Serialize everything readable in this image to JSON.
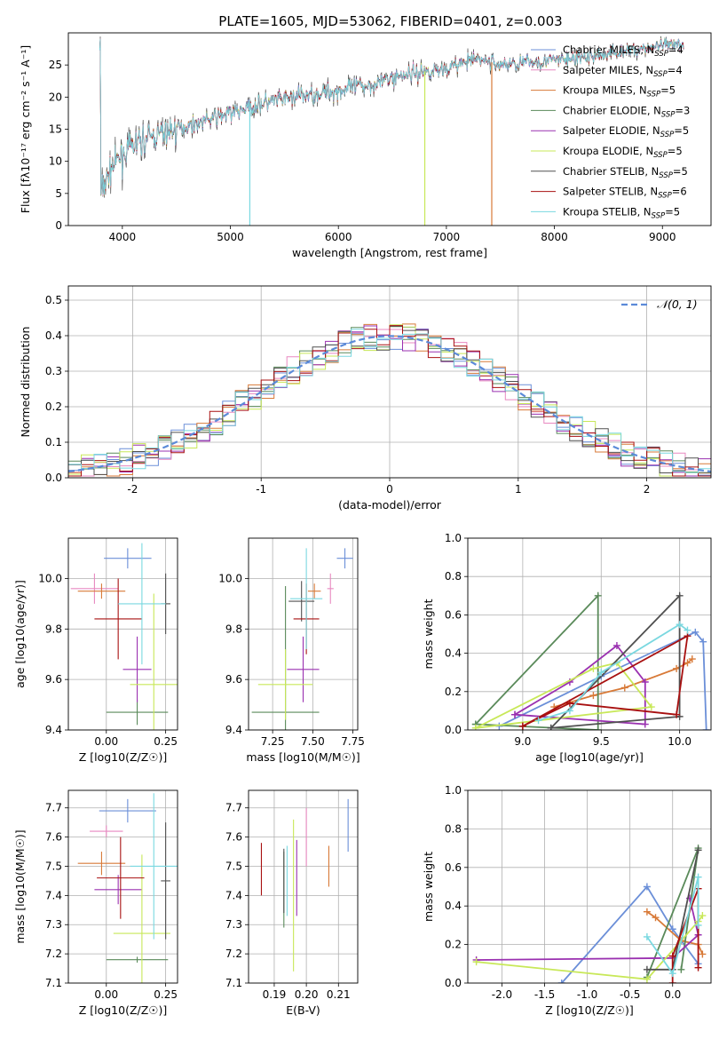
{
  "title": "PLATE=1605, MJD=53062, FIBERID=0401, z=0.003",
  "colors": {
    "chabrier_miles": "#6b8fd8",
    "salpeter_miles": "#e888c0",
    "kroupa_miles": "#d87a38",
    "chabrier_elodie": "#5a8a5a",
    "salpeter_elodie": "#9a30b0",
    "kroupa_elodie": "#c8e858",
    "chabrier_stelib": "#505050",
    "salpeter_stelib": "#a81010",
    "kroupa_stelib": "#7ad8e0"
  },
  "chart_data": [
    {
      "id": "spectrum",
      "type": "line",
      "xlabel": "wavelength [Angstrom, rest frame]",
      "ylabel": "Flux [fλ10⁻¹⁷ erg cm⁻² s⁻¹ A⁻¹]",
      "xlim": [
        3500,
        9450
      ],
      "ylim": [
        0,
        30
      ],
      "xticks": [
        4000,
        5000,
        6000,
        7000,
        8000,
        9000
      ],
      "yticks": [
        0,
        5,
        10,
        15,
        20,
        25
      ],
      "legend": "top-right",
      "legend_entries": [
        {
          "key": "chabrier_miles",
          "label": "Chabrier MILES, N_SSP=4"
        },
        {
          "key": "salpeter_miles",
          "label": "Salpeter MILES, N_SSP=4"
        },
        {
          "key": "kroupa_miles",
          "label": "Kroupa MILES, N_SSP=5"
        },
        {
          "key": "chabrier_elodie",
          "label": "Chabrier ELODIE, N_SSP=3"
        },
        {
          "key": "salpeter_elodie",
          "label": "Salpeter ELODIE, N_SSP=5"
        },
        {
          "key": "kroupa_elodie",
          "label": "Kroupa ELODIE, N_SSP=5"
        },
        {
          "key": "chabrier_stelib",
          "label": "Chabrier STELIB, N_SSP=5"
        },
        {
          "key": "salpeter_stelib",
          "label": "Salpeter STELIB, N_SSP=6"
        },
        {
          "key": "kroupa_stelib",
          "label": "Kroupa STELIB, N_SSP=5"
        }
      ],
      "continuum": [
        [
          3800,
          5
        ],
        [
          3900,
          9
        ],
        [
          4000,
          11
        ],
        [
          4100,
          12.5
        ],
        [
          4300,
          14
        ],
        [
          4500,
          15
        ],
        [
          4700,
          16
        ],
        [
          5000,
          17.5
        ],
        [
          5300,
          19
        ],
        [
          5600,
          20
        ],
        [
          6000,
          21
        ],
        [
          6300,
          22
        ],
        [
          6600,
          23.5
        ],
        [
          7000,
          24.5
        ],
        [
          7300,
          26
        ],
        [
          7500,
          25
        ],
        [
          7800,
          25.5
        ],
        [
          8200,
          26
        ],
        [
          8600,
          27
        ],
        [
          9000,
          28
        ],
        [
          9200,
          28
        ]
      ],
      "dropouts": [
        {
          "key": "kroupa_elodie",
          "x": 6800,
          "y": 0
        },
        {
          "key": "kroupa_miles",
          "x": 7420,
          "y": 0
        },
        {
          "key": "kroupa_stelib",
          "x": 5180,
          "y": 0
        }
      ]
    },
    {
      "id": "residuals",
      "type": "bar",
      "xlabel": "(data-model)/error",
      "ylabel": "Normed distribution",
      "xlim": [
        -2.5,
        2.5
      ],
      "ylim": [
        0,
        0.54
      ],
      "xticks": [
        -2,
        -1,
        0,
        1,
        2
      ],
      "yticks": [
        0.0,
        0.1,
        0.2,
        0.3,
        0.4,
        0.5
      ],
      "legend": "top-right",
      "gaussian_label": "𝒩(0, 1)",
      "bin_width": 0.1
    },
    {
      "id": "age_vs_Z",
      "type": "scatter",
      "xlabel": "Z [log10(Z/Z☉)]",
      "ylabel": "age  [log10(age/yr)]",
      "xlim": [
        -0.16,
        0.3
      ],
      "ylim": [
        9.4,
        10.16
      ],
      "xticks": [
        0.0,
        0.25
      ],
      "yticks": [
        9.4,
        9.6,
        9.8,
        10.0
      ],
      "points": [
        {
          "key": "chabrier_miles",
          "x": 0.09,
          "xerr": 0.1,
          "y": 10.08,
          "yerr": 0.04
        },
        {
          "key": "salpeter_miles",
          "x": -0.05,
          "xerr": 0.1,
          "y": 9.96,
          "yerr": 0.06
        },
        {
          "key": "kroupa_miles",
          "x": -0.02,
          "xerr": 0.1,
          "y": 9.95,
          "yerr": 0.03
        },
        {
          "key": "chabrier_elodie",
          "x": 0.13,
          "xerr": 0.13,
          "y": 9.47,
          "yerr": 0.05
        },
        {
          "key": "salpeter_elodie",
          "x": 0.13,
          "xerr": 0.06,
          "y": 9.64,
          "yerr": 0.13
        },
        {
          "key": "kroupa_elodie",
          "x": 0.2,
          "xerr": 0.1,
          "y": 9.58,
          "yerr": 0.36
        },
        {
          "key": "chabrier_stelib",
          "x": 0.25,
          "xerr": 0.02,
          "y": 9.9,
          "yerr": 0.12
        },
        {
          "key": "salpeter_stelib",
          "x": 0.05,
          "xerr": 0.1,
          "y": 9.84,
          "yerr": 0.16
        },
        {
          "key": "kroupa_stelib",
          "x": 0.15,
          "xerr": 0.1,
          "y": 9.9,
          "yerr": 0.24
        }
      ]
    },
    {
      "id": "age_vs_mass",
      "type": "scatter",
      "xlabel": "mass [log10(M/M☉)]",
      "xlim": [
        7.1,
        7.78
      ],
      "ylim": [
        9.4,
        10.16
      ],
      "xticks": [
        7.25,
        7.5,
        7.75
      ],
      "yticks": [
        9.4,
        9.6,
        9.8,
        10.0
      ],
      "points": [
        {
          "key": "chabrier_miles",
          "x": 7.7,
          "xerr": 0.05,
          "y": 10.08,
          "yerr": 0.04
        },
        {
          "key": "salpeter_miles",
          "x": 7.61,
          "xerr": 0.02,
          "y": 9.96,
          "yerr": 0.06
        },
        {
          "key": "kroupa_miles",
          "x": 7.51,
          "xerr": 0.04,
          "y": 9.95,
          "yerr": 0.03
        },
        {
          "key": "chabrier_elodie",
          "x": 7.33,
          "xerr": 0.21,
          "y": 9.47,
          "yerr": 0.5
        },
        {
          "key": "salpeter_elodie",
          "x": 7.44,
          "xerr": 0.1,
          "y": 9.64,
          "yerr": 0.13
        },
        {
          "key": "kroupa_elodie",
          "x": 7.33,
          "xerr": 0.17,
          "y": 9.58,
          "yerr": 0.14
        },
        {
          "key": "chabrier_stelib",
          "x": 7.43,
          "xerr": 0.08,
          "y": 9.91,
          "yerr": 0.08
        },
        {
          "key": "salpeter_stelib",
          "x": 7.46,
          "xerr": 0.08,
          "y": 9.84,
          "yerr": 0.14
        },
        {
          "key": "kroupa_stelib",
          "x": 7.46,
          "xerr": 0.1,
          "y": 9.92,
          "yerr": 0.2
        }
      ]
    },
    {
      "id": "weight_vs_age",
      "type": "line",
      "xlabel": "age  [log10(age/yr)]",
      "ylabel": "mass weight",
      "xlim": [
        8.65,
        10.2
      ],
      "ylim": [
        0,
        1.0
      ],
      "xticks": [
        9.0,
        9.5,
        10.0
      ],
      "yticks": [
        0.0,
        0.2,
        0.4,
        0.6,
        0.8,
        1.0
      ],
      "series": [
        {
          "key": "chabrier_miles",
          "x": [
            8.85,
            9.5,
            10.1,
            10.15,
            10.17
          ],
          "y": [
            0.02,
            0.28,
            0.51,
            0.46,
            0.0
          ]
        },
        {
          "key": "kroupa_miles",
          "x": [
            9.2,
            9.45,
            9.65,
            9.98,
            10.05,
            10.08
          ],
          "y": [
            0.12,
            0.18,
            0.22,
            0.32,
            0.35,
            0.37
          ]
        },
        {
          "key": "chabrier_elodie",
          "x": [
            8.7,
            9.48,
            9.48,
            8.7
          ],
          "y": [
            0.03,
            0.7,
            0.0,
            0.03
          ]
        },
        {
          "key": "salpeter_elodie",
          "x": [
            8.95,
            9.3,
            9.6,
            9.78,
            9.78,
            8.95
          ],
          "y": [
            0.08,
            0.25,
            0.44,
            0.25,
            0.03,
            0.08
          ]
        },
        {
          "key": "kroupa_elodie",
          "x": [
            8.7,
            9.45,
            9.6,
            9.82,
            8.7
          ],
          "y": [
            0.01,
            0.32,
            0.35,
            0.12,
            0.01
          ]
        },
        {
          "key": "chabrier_stelib",
          "x": [
            9.18,
            10.0,
            10.0,
            9.18
          ],
          "y": [
            0.01,
            0.7,
            0.07,
            0.01
          ]
        },
        {
          "key": "salpeter_stelib",
          "x": [
            9.0,
            9.3,
            9.98,
            10.05,
            9.0
          ],
          "y": [
            0.02,
            0.14,
            0.08,
            0.49,
            0.02
          ]
        },
        {
          "key": "kroupa_stelib",
          "x": [
            9.1,
            9.3,
            9.5,
            10.0,
            10.05
          ],
          "y": [
            0.05,
            0.1,
            0.3,
            0.55,
            0.52
          ]
        }
      ]
    },
    {
      "id": "mass_vs_Z",
      "type": "scatter",
      "xlabel": "Z [log10(Z/Z☉)]",
      "ylabel": "mass [log10(M/M☉)]",
      "xlim": [
        -0.16,
        0.3
      ],
      "ylim": [
        7.1,
        7.76
      ],
      "xticks": [
        0.0,
        0.25
      ],
      "yticks": [
        7.1,
        7.2,
        7.3,
        7.4,
        7.5,
        7.6,
        7.7
      ],
      "points": [
        {
          "key": "chabrier_miles",
          "x": 0.09,
          "xerr": 0.12,
          "y": 7.69,
          "yerr": 0.04
        },
        {
          "key": "salpeter_miles",
          "x": 0.0,
          "xerr": 0.07,
          "y": 7.62,
          "yerr": 0.02
        },
        {
          "key": "kroupa_miles",
          "x": -0.02,
          "xerr": 0.1,
          "y": 7.51,
          "yerr": 0.04
        },
        {
          "key": "chabrier_elodie",
          "x": 0.13,
          "xerr": 0.13,
          "y": 7.18,
          "yerr": 0.01
        },
        {
          "key": "salpeter_elodie",
          "x": 0.05,
          "xerr": 0.1,
          "y": 7.42,
          "yerr": 0.05
        },
        {
          "key": "kroupa_elodie",
          "x": 0.15,
          "xerr": 0.12,
          "y": 7.27,
          "yerr": 0.27
        },
        {
          "key": "chabrier_stelib",
          "x": 0.25,
          "xerr": 0.02,
          "y": 7.45,
          "yerr": 0.2
        },
        {
          "key": "salpeter_stelib",
          "x": 0.06,
          "xerr": 0.1,
          "y": 7.46,
          "yerr": 0.14
        },
        {
          "key": "kroupa_stelib",
          "x": 0.2,
          "xerr": 0.1,
          "y": 7.5,
          "yerr": 0.25
        }
      ]
    },
    {
      "id": "mass_vs_ebv",
      "type": "scatter",
      "xlabel": "E(B-V)",
      "xlim": [
        0.182,
        0.216
      ],
      "ylim": [
        7.1,
        7.76
      ],
      "xticks": [
        0.19,
        0.2,
        0.21
      ],
      "yticks": [
        7.1,
        7.2,
        7.3,
        7.4,
        7.5,
        7.6,
        7.7
      ],
      "points": [
        {
          "key": "chabrier_miles",
          "x": 0.213,
          "y": 7.64,
          "yerr": 0.09
        },
        {
          "key": "salpeter_miles",
          "x": 0.2,
          "y": 7.6,
          "yerr": 0.1
        },
        {
          "key": "kroupa_miles",
          "x": 0.207,
          "y": 7.5,
          "yerr": 0.07
        },
        {
          "key": "chabrier_elodie",
          "x": 0.193,
          "y": 7.42,
          "yerr": 0.13
        },
        {
          "key": "salpeter_elodie",
          "x": 0.197,
          "y": 7.46,
          "yerr": 0.13
        },
        {
          "key": "kroupa_elodie",
          "x": 0.196,
          "y": 7.4,
          "yerr": 0.26
        },
        {
          "key": "chabrier_stelib",
          "x": 0.193,
          "y": 7.45,
          "yerr": 0.11
        },
        {
          "key": "salpeter_stelib",
          "x": 0.186,
          "y": 7.49,
          "yerr": 0.09
        },
        {
          "key": "kroupa_stelib",
          "x": 0.194,
          "y": 7.45,
          "yerr": 0.12
        }
      ]
    },
    {
      "id": "weight_vs_Z",
      "type": "line",
      "xlabel": "Z [log10(Z/Z☉)]",
      "ylabel": "mass weight",
      "xlim": [
        -2.4,
        0.45
      ],
      "ylim": [
        0,
        1.0
      ],
      "xticks": [
        -2.0,
        -1.5,
        -1.0,
        -0.5,
        0.0
      ],
      "yticks": [
        0.0,
        0.2,
        0.4,
        0.6,
        0.8,
        1.0
      ],
      "series": [
        {
          "key": "chabrier_miles",
          "x": [
            -1.3,
            -0.3,
            0.0,
            0.3
          ],
          "y": [
            0.0,
            0.5,
            0.28,
            0.1
          ]
        },
        {
          "key": "kroupa_miles",
          "x": [
            -0.3,
            -0.2,
            0.1,
            0.3,
            0.35
          ],
          "y": [
            0.37,
            0.34,
            0.22,
            0.2,
            0.15
          ]
        },
        {
          "key": "chabrier_elodie",
          "x": [
            -0.3,
            0.3,
            0.1
          ],
          "y": [
            0.03,
            0.7,
            0.07
          ]
        },
        {
          "key": "salpeter_elodie",
          "x": [
            -2.3,
            0.0,
            0.3,
            0.2
          ],
          "y": [
            0.12,
            0.13,
            0.25,
            0.44
          ]
        },
        {
          "key": "kroupa_elodie",
          "x": [
            -2.3,
            -0.3,
            0.3,
            0.35
          ],
          "y": [
            0.11,
            0.02,
            0.32,
            0.35
          ]
        },
        {
          "key": "chabrier_stelib",
          "x": [
            -0.3,
            0.0,
            0.3
          ],
          "y": [
            0.07,
            0.07,
            0.69
          ]
        },
        {
          "key": "salpeter_stelib",
          "x": [
            0.0,
            0.0,
            0.3,
            0.3
          ],
          "y": [
            0.0,
            0.14,
            0.49,
            0.08
          ]
        },
        {
          "key": "kroupa_stelib",
          "x": [
            -0.3,
            0.0,
            0.3,
            0.3
          ],
          "y": [
            0.24,
            0.05,
            0.55,
            0.3
          ]
        }
      ]
    }
  ]
}
